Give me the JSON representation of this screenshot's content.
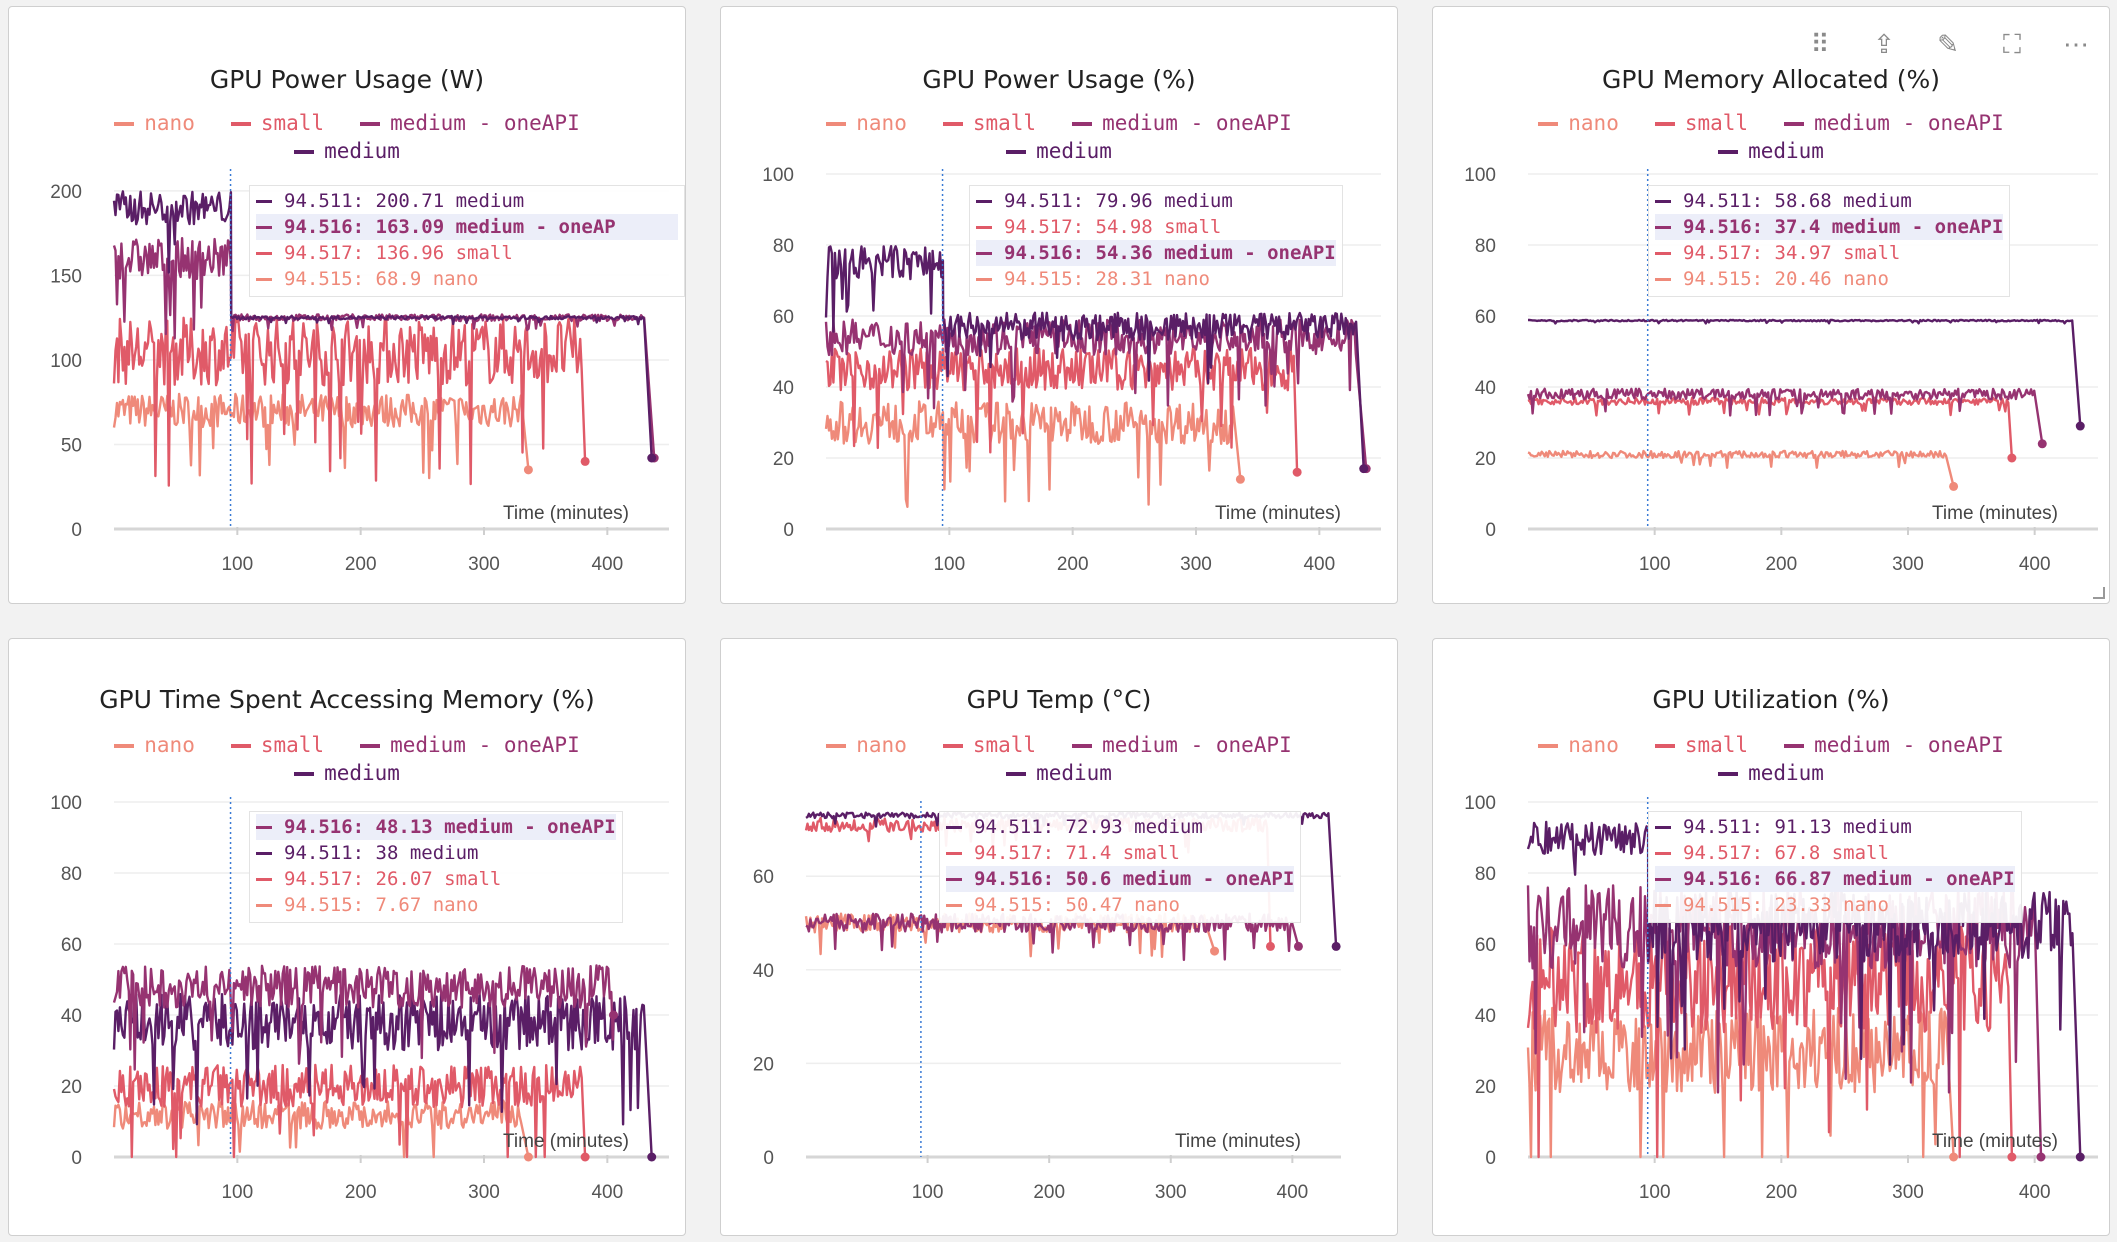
{
  "colors": {
    "nano": "#ef8a7a",
    "small": "#e05a68",
    "medium - oneAPI": "#963371",
    "medium": "#5a1e66"
  },
  "legend": [
    "nano",
    "small",
    "medium - oneAPI",
    "medium"
  ],
  "toolbar_icons": [
    "drag-handle-icon",
    "share-icon",
    "edit-icon",
    "fullscreen-icon",
    "more-icon"
  ],
  "panels": [
    {
      "title": "GPU Power Usage (W)",
      "xlabel": "Time (minutes)",
      "xticks": [
        "100",
        "200",
        "300",
        "400"
      ],
      "yticks": [
        "0",
        "50",
        "100",
        "150",
        "200"
      ],
      "tooltip": [
        {
          "series": "medium",
          "text": "94.511: 200.71 medium",
          "hl": false
        },
        {
          "series": "medium - oneAPI",
          "text": "94.516: 163.09 medium - oneAP",
          "hl": true
        },
        {
          "series": "small",
          "text": "94.517: 136.96 small",
          "hl": false
        },
        {
          "series": "nano",
          "text": "94.515: 68.9 nano",
          "hl": false
        }
      ]
    },
    {
      "title": "GPU Power Usage (%)",
      "xlabel": "Time (minutes)",
      "xticks": [
        "100",
        "200",
        "300",
        "400"
      ],
      "yticks": [
        "0",
        "20",
        "40",
        "60",
        "80",
        "100"
      ],
      "tooltip": [
        {
          "series": "medium",
          "text": "94.511: 79.96 medium",
          "hl": false
        },
        {
          "series": "small",
          "text": "94.517: 54.98 small",
          "hl": false
        },
        {
          "series": "medium - oneAPI",
          "text": "94.516: 54.36 medium - oneAPI",
          "hl": true
        },
        {
          "series": "nano",
          "text": "94.515: 28.31 nano",
          "hl": false
        }
      ]
    },
    {
      "title": "GPU Memory Allocated (%)",
      "xlabel": "Time (minutes)",
      "xticks": [
        "100",
        "200",
        "300",
        "400"
      ],
      "yticks": [
        "0",
        "20",
        "40",
        "60",
        "80",
        "100"
      ],
      "tooltip": [
        {
          "series": "medium",
          "text": "94.511: 58.68 medium",
          "hl": false
        },
        {
          "series": "medium - oneAPI",
          "text": "94.516: 37.4 medium - oneAPI",
          "hl": true
        },
        {
          "series": "small",
          "text": "94.517: 34.97 small",
          "hl": false
        },
        {
          "series": "nano",
          "text": "94.515: 20.46 nano",
          "hl": false
        }
      ]
    },
    {
      "title": "GPU Time Spent Accessing Memory (%)",
      "xlabel": "Time (minutes)",
      "xticks": [
        "100",
        "200",
        "300",
        "400"
      ],
      "yticks": [
        "0",
        "20",
        "40",
        "60",
        "80",
        "100"
      ],
      "tooltip": [
        {
          "series": "medium - oneAPI",
          "text": "94.516: 48.13 medium - oneAPI",
          "hl": true
        },
        {
          "series": "medium",
          "text": "94.511: 38 medium",
          "hl": false
        },
        {
          "series": "small",
          "text": "94.517: 26.07 small",
          "hl": false
        },
        {
          "series": "nano",
          "text": "94.515: 7.67 nano",
          "hl": false
        }
      ]
    },
    {
      "title": "GPU Temp (°C)",
      "xlabel": "Time (minutes)",
      "xticks": [
        "100",
        "200",
        "300",
        "400"
      ],
      "yticks": [
        "0",
        "20",
        "40",
        "60"
      ],
      "tooltip": [
        {
          "series": "medium",
          "text": "94.511: 72.93 medium",
          "hl": false
        },
        {
          "series": "small",
          "text": "94.517: 71.4 small",
          "hl": false
        },
        {
          "series": "medium - oneAPI",
          "text": "94.516: 50.6 medium - oneAPI",
          "hl": true
        },
        {
          "series": "nano",
          "text": "94.515: 50.47 nano",
          "hl": false
        }
      ]
    },
    {
      "title": "GPU Utilization (%)",
      "xlabel": "Time (minutes)",
      "xticks": [
        "100",
        "200",
        "300",
        "400"
      ],
      "yticks": [
        "0",
        "20",
        "40",
        "60",
        "80",
        "100"
      ],
      "tooltip": [
        {
          "series": "medium",
          "text": "94.511: 91.13 medium",
          "hl": false
        },
        {
          "series": "small",
          "text": "94.517: 67.8 small",
          "hl": false
        },
        {
          "series": "medium - oneAPI",
          "text": "94.516: 66.87 medium - oneAPI",
          "hl": true
        },
        {
          "series": "nano",
          "text": "94.515: 23.33 nano",
          "hl": false
        }
      ]
    }
  ],
  "chart_data": [
    {
      "type": "line",
      "title": "GPU Power Usage (W)",
      "xlabel": "Time (minutes)",
      "ylabel": "",
      "xlim": [
        0,
        450
      ],
      "ylim": [
        0,
        210
      ],
      "xticks": [
        100,
        200,
        300,
        400
      ],
      "yticks": [
        0,
        50,
        100,
        150,
        200
      ],
      "cursor_x": 94.5,
      "grid": true,
      "legend_position": "top",
      "series": [
        {
          "name": "nano",
          "end_x": 336,
          "end_y": 35,
          "segments": [
            [
              0,
              330,
              70,
              10
            ]
          ]
        },
        {
          "name": "small",
          "end_x": 382,
          "end_y": 40,
          "segments": [
            [
              0,
              380,
              105,
              20
            ]
          ]
        },
        {
          "name": "medium - oneAPI",
          "end_x": 438,
          "end_y": 42,
          "segments": [
            [
              0,
              95,
              160,
              12
            ],
            [
              95,
              430,
              125,
              2
            ]
          ]
        },
        {
          "name": "medium",
          "end_x": 436,
          "end_y": 42,
          "segments": [
            [
              0,
              95,
              190,
              10
            ],
            [
              95,
              430,
              125,
              1
            ]
          ]
        }
      ]
    },
    {
      "type": "line",
      "title": "GPU Power Usage (%)",
      "xlabel": "Time (minutes)",
      "ylabel": "",
      "xlim": [
        0,
        450
      ],
      "ylim": [
        0,
        100
      ],
      "xticks": [
        100,
        200,
        300,
        400
      ],
      "yticks": [
        0,
        20,
        40,
        60,
        80,
        100
      ],
      "cursor_x": 94.5,
      "grid": true,
      "legend_position": "top",
      "series": [
        {
          "name": "nano",
          "end_x": 336,
          "end_y": 14,
          "segments": [
            [
              0,
              330,
              30,
              6
            ]
          ]
        },
        {
          "name": "small",
          "end_x": 382,
          "end_y": 16,
          "segments": [
            [
              0,
              380,
              45,
              6
            ]
          ]
        },
        {
          "name": "medium - oneAPI",
          "end_x": 438,
          "end_y": 17,
          "segments": [
            [
              0,
              430,
              54,
              5
            ]
          ]
        },
        {
          "name": "medium",
          "end_x": 436,
          "end_y": 17,
          "segments": [
            [
              0,
              95,
              75,
              5
            ],
            [
              95,
              430,
              57,
              4
            ]
          ]
        }
      ]
    },
    {
      "type": "line",
      "title": "GPU Memory Allocated (%)",
      "xlabel": "Time (minutes)",
      "ylabel": "",
      "xlim": [
        0,
        450
      ],
      "ylim": [
        0,
        100
      ],
      "xticks": [
        100,
        200,
        300,
        400
      ],
      "yticks": [
        0,
        20,
        40,
        60,
        80,
        100
      ],
      "cursor_x": 94.5,
      "grid": true,
      "legend_position": "top",
      "series": [
        {
          "name": "nano",
          "end_x": 336,
          "end_y": 12,
          "segments": [
            [
              0,
              330,
              21,
              1
            ]
          ]
        },
        {
          "name": "small",
          "end_x": 382,
          "end_y": 20,
          "segments": [
            [
              0,
              380,
              36,
              1
            ]
          ]
        },
        {
          "name": "medium - oneAPI",
          "end_x": 406,
          "end_y": 24,
          "segments": [
            [
              0,
              400,
              38,
              1.5
            ]
          ]
        },
        {
          "name": "medium",
          "end_x": 436,
          "end_y": 29,
          "segments": [
            [
              0,
              430,
              58.7,
              0.2
            ]
          ]
        }
      ]
    },
    {
      "type": "line",
      "title": "GPU Time Spent Accessing Memory (%)",
      "xlabel": "Time (minutes)",
      "ylabel": "",
      "xlim": [
        0,
        450
      ],
      "ylim": [
        0,
        100
      ],
      "xticks": [
        100,
        200,
        300,
        400
      ],
      "yticks": [
        0,
        20,
        40,
        60,
        80,
        100
      ],
      "cursor_x": 94.5,
      "grid": true,
      "legend_position": "top",
      "series": [
        {
          "name": "nano",
          "end_x": 336,
          "end_y": 0,
          "segments": [
            [
              0,
              330,
              12,
              4
            ]
          ]
        },
        {
          "name": "small",
          "end_x": 382,
          "end_y": 0,
          "segments": [
            [
              0,
              380,
              20,
              6
            ]
          ]
        },
        {
          "name": "medium",
          "end_x": 436,
          "end_y": 0,
          "segments": [
            [
              0,
              430,
              38,
              8
            ]
          ]
        },
        {
          "name": "medium - oneAPI",
          "end_x": 405,
          "end_y": 40,
          "segments": [
            [
              0,
              405,
              48,
              6
            ]
          ]
        }
      ]
    },
    {
      "type": "line",
      "title": "GPU Temp (°C)",
      "xlabel": "Time (minutes)",
      "ylabel": "",
      "xlim": [
        0,
        440
      ],
      "ylim": [
        0,
        75
      ],
      "xticks": [
        100,
        200,
        300,
        400
      ],
      "yticks": [
        0,
        20,
        40,
        60
      ],
      "cursor_x": 94.5,
      "grid": true,
      "legend_position": "top",
      "series": [
        {
          "name": "nano",
          "end_x": 336,
          "end_y": 44,
          "segments": [
            [
              0,
              330,
              50,
              2
            ]
          ]
        },
        {
          "name": "small",
          "end_x": 382,
          "end_y": 45,
          "segments": [
            [
              0,
              380,
              71,
              1.5
            ]
          ]
        },
        {
          "name": "medium - oneAPI",
          "end_x": 405,
          "end_y": 45,
          "segments": [
            [
              0,
              400,
              50,
              2
            ]
          ]
        },
        {
          "name": "medium",
          "end_x": 436,
          "end_y": 45,
          "segments": [
            [
              0,
              430,
              73,
              0.6
            ]
          ]
        }
      ]
    },
    {
      "type": "line",
      "title": "GPU Utilization (%)",
      "xlabel": "Time (minutes)",
      "ylabel": "",
      "xlim": [
        0,
        450
      ],
      "ylim": [
        0,
        100
      ],
      "xticks": [
        100,
        200,
        300,
        400
      ],
      "yticks": [
        0,
        20,
        40,
        60,
        80,
        100
      ],
      "cursor_x": 94.5,
      "grid": true,
      "legend_position": "top",
      "series": [
        {
          "name": "nano",
          "end_x": 336,
          "end_y": 0,
          "segments": [
            [
              0,
              330,
              30,
              12
            ]
          ]
        },
        {
          "name": "small",
          "end_x": 382,
          "end_y": 0,
          "segments": [
            [
              0,
              380,
              50,
              15
            ]
          ]
        },
        {
          "name": "medium - oneAPI",
          "end_x": 405,
          "end_y": 0,
          "segments": [
            [
              0,
              400,
              65,
              12
            ]
          ]
        },
        {
          "name": "medium",
          "end_x": 436,
          "end_y": 0,
          "segments": [
            [
              0,
              95,
              90,
              5
            ],
            [
              95,
              430,
              65,
              10
            ]
          ]
        }
      ]
    }
  ]
}
